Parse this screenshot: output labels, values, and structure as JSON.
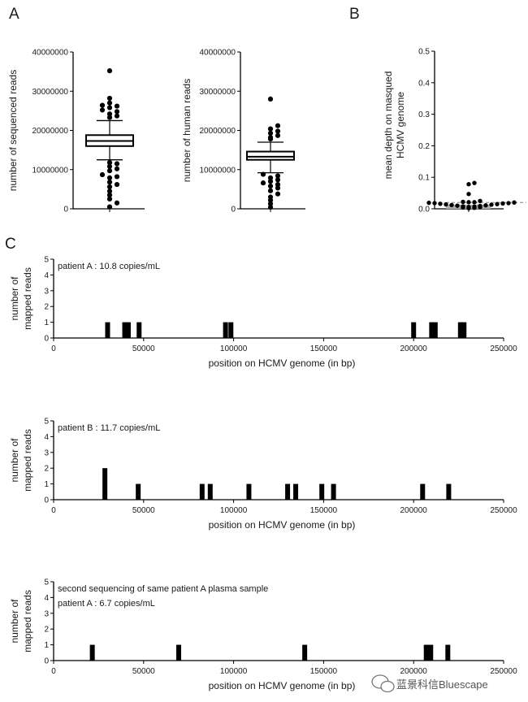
{
  "chart_data": [
    {
      "type": "box",
      "panel": "A",
      "ylabel": "number of sequenced reads",
      "ylim": [
        0,
        40000000
      ],
      "yticks": [
        "0",
        "10000000",
        "20000000",
        "30000000",
        "40000000"
      ],
      "box": {
        "whisker_low": 12500000,
        "q1": 16000000,
        "median": 17300000,
        "q3": 18800000,
        "whisker_high": 22500000
      },
      "outliers": [
        35200000,
        28200000,
        27000000,
        26200000,
        25200000,
        25800000,
        26400000,
        24800000,
        24200000,
        23700000,
        23300000,
        11800000,
        11500000,
        10800000,
        10200000,
        9700000,
        8700000,
        8200000,
        7900000,
        6800000,
        6200000,
        5600000,
        4500000,
        3500000,
        2500000,
        1500000,
        500000
      ]
    },
    {
      "type": "box",
      "panel": "A",
      "ylabel": "number of human  reads",
      "ylim": [
        0,
        40000000
      ],
      "yticks": [
        "0",
        "10000000",
        "20000000",
        "30000000",
        "40000000"
      ],
      "box": {
        "whisker_low": 9200000,
        "q1": 12500000,
        "median": 13300000,
        "q3": 14600000,
        "whisker_high": 17000000
      },
      "outliers": [
        28000000,
        21200000,
        20400000,
        19800000,
        19300000,
        18700000,
        18200000,
        17800000,
        8800000,
        8400000,
        7900000,
        7400000,
        7000000,
        6600000,
        6200000,
        5800000,
        5300000,
        4600000,
        3800000,
        3000000,
        2200000,
        1300000,
        400000
      ]
    },
    {
      "type": "scatter",
      "panel": "B",
      "ylabel": "mean depth on masqued HCMV genome",
      "ylim": [
        0,
        0.5
      ],
      "yticks": [
        "0.0",
        "0.1",
        "0.2",
        "0.3",
        "0.4",
        "0.5"
      ],
      "threshold": 0.02,
      "points": [
        0.082,
        0.078,
        0.047,
        0.025,
        0.022,
        0.021,
        0.021,
        0.02,
        0.019,
        0.018,
        0.018,
        0.017,
        0.016,
        0.015,
        0.014,
        0.013,
        0.012,
        0.011,
        0.01,
        0.009,
        0.008,
        0.007,
        0.006,
        0.005,
        0.004,
        0.003,
        0.002
      ]
    },
    {
      "type": "bar",
      "panel": "C",
      "annotations": [
        "patient A : 10.8 copies/mL"
      ],
      "xlabel": "position on HCMV genome (in bp)",
      "ylabel": [
        "number of",
        "mapped reads"
      ],
      "xlim": [
        0,
        250000
      ],
      "ylim": [
        0,
        5
      ],
      "xticks": [
        "0",
        "50000",
        "100000",
        "150000",
        "200000",
        "250000"
      ],
      "yticks": [
        "0",
        "1",
        "2",
        "3",
        "4",
        "5"
      ],
      "bars": [
        {
          "x": 30000,
          "y": 1
        },
        {
          "x": 39500,
          "y": 1
        },
        {
          "x": 41500,
          "y": 1
        },
        {
          "x": 47500,
          "y": 1
        },
        {
          "x": 95500,
          "y": 1
        },
        {
          "x": 98500,
          "y": 1
        },
        {
          "x": 200000,
          "y": 1
        },
        {
          "x": 210000,
          "y": 1
        },
        {
          "x": 212000,
          "y": 1
        },
        {
          "x": 226000,
          "y": 1
        },
        {
          "x": 228000,
          "y": 1
        }
      ]
    },
    {
      "type": "bar",
      "panel": "C",
      "annotations": [
        "patient B : 11.7 copies/mL"
      ],
      "xlabel": "position on HCMV genome (in bp)",
      "ylabel": [
        "number of",
        "mapped reads"
      ],
      "xlim": [
        0,
        250000
      ],
      "ylim": [
        0,
        5
      ],
      "xticks": [
        "0",
        "50000",
        "100000",
        "150000",
        "200000",
        "250000"
      ],
      "yticks": [
        "0",
        "1",
        "2",
        "3",
        "4",
        "5"
      ],
      "bars": [
        {
          "x": 28500,
          "y": 2
        },
        {
          "x": 47000,
          "y": 1
        },
        {
          "x": 82500,
          "y": 1
        },
        {
          "x": 87000,
          "y": 1
        },
        {
          "x": 108500,
          "y": 1
        },
        {
          "x": 130000,
          "y": 1
        },
        {
          "x": 134500,
          "y": 1
        },
        {
          "x": 149000,
          "y": 1
        },
        {
          "x": 155500,
          "y": 1
        },
        {
          "x": 205000,
          "y": 1
        },
        {
          "x": 219500,
          "y": 1
        }
      ]
    },
    {
      "type": "bar",
      "panel": "C",
      "annotations": [
        "second sequencing of same patient A plasma sample",
        "patient A : 6.7 copies/mL"
      ],
      "xlabel": "position on HCMV genome (in bp)",
      "ylabel": [
        "number of",
        "mapped reads"
      ],
      "xlim": [
        0,
        250000
      ],
      "ylim": [
        0,
        5
      ],
      "xticks": [
        "0",
        "50000",
        "100000",
        "150000",
        "200000",
        "250000"
      ],
      "yticks": [
        "0",
        "1",
        "2",
        "3",
        "4",
        "5"
      ],
      "bars": [
        {
          "x": 21500,
          "y": 1
        },
        {
          "x": 69500,
          "y": 1
        },
        {
          "x": 139500,
          "y": 1
        },
        {
          "x": 207000,
          "y": 1
        },
        {
          "x": 209500,
          "y": 1
        },
        {
          "x": 219000,
          "y": 1
        }
      ]
    }
  ],
  "panel_letters": [
    "A",
    "B",
    "C"
  ],
  "watermark": "蓝景科信Bluescape",
  "colors": {
    "ink": "#000000",
    "threshold_line": "#999999",
    "b_band": "#b0b0b0",
    "watermark_logo": "#777777"
  }
}
